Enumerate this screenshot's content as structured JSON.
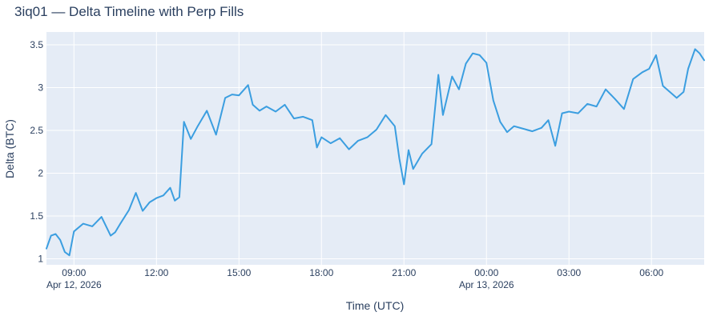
{
  "chart_data": {
    "type": "line",
    "title": "3iq01 — Delta Timeline with Perp Fills",
    "xlabel": "Time (UTC)",
    "ylabel": "Delta (BTC)",
    "x_tick_labels": [
      {
        "label": "09:00",
        "sublabel": "Apr 12, 2026",
        "value": "2026-04-12 09:00"
      },
      {
        "label": "12:00",
        "sublabel": "",
        "value": "2026-04-12 12:00"
      },
      {
        "label": "15:00",
        "sublabel": "",
        "value": "2026-04-12 15:00"
      },
      {
        "label": "18:00",
        "sublabel": "",
        "value": "2026-04-12 18:00"
      },
      {
        "label": "21:00",
        "sublabel": "",
        "value": "2026-04-12 21:00"
      },
      {
        "label": "00:00",
        "sublabel": "Apr 13, 2026",
        "value": "2026-04-13 00:00"
      },
      {
        "label": "03:00",
        "sublabel": "",
        "value": "2026-04-13 03:00"
      },
      {
        "label": "06:00",
        "sublabel": "",
        "value": "2026-04-13 06:00"
      }
    ],
    "y_ticks": [
      1,
      1.5,
      2,
      2.5,
      3,
      3.5
    ],
    "y_tick_labels": [
      "1",
      "1.5",
      "2",
      "2.5",
      "3",
      "3.5"
    ],
    "xlim": [
      "2026-04-12 08:00",
      "2026-04-13 07:55"
    ],
    "ylim": [
      0.93,
      3.65
    ],
    "grid": true,
    "line_color": "#3b9ee0",
    "plot_bg": "#e5ecf6",
    "series": [
      {
        "x": [
          "2026-04-12 08:00",
          "2026-04-12 08:10",
          "2026-04-12 08:20",
          "2026-04-12 08:30",
          "2026-04-12 08:40",
          "2026-04-12 08:50",
          "2026-04-12 09:00",
          "2026-04-12 09:20",
          "2026-04-12 09:40",
          "2026-04-12 10:00",
          "2026-04-12 10:20",
          "2026-04-12 10:30",
          "2026-04-12 10:40",
          "2026-04-12 11:00",
          "2026-04-12 11:15",
          "2026-04-12 11:30",
          "2026-04-12 11:45",
          "2026-04-12 12:00",
          "2026-04-12 12:15",
          "2026-04-12 12:30",
          "2026-04-12 12:40",
          "2026-04-12 12:50",
          "2026-04-12 13:00",
          "2026-04-12 13:15",
          "2026-04-12 13:30",
          "2026-04-12 13:50",
          "2026-04-12 14:10",
          "2026-04-12 14:30",
          "2026-04-12 14:45",
          "2026-04-12 15:00",
          "2026-04-12 15:20",
          "2026-04-12 15:30",
          "2026-04-12 15:45",
          "2026-04-12 16:00",
          "2026-04-12 16:20",
          "2026-04-12 16:40",
          "2026-04-12 17:00",
          "2026-04-12 17:20",
          "2026-04-12 17:40",
          "2026-04-12 17:50",
          "2026-04-12 18:00",
          "2026-04-12 18:20",
          "2026-04-12 18:40",
          "2026-04-12 19:00",
          "2026-04-12 19:20",
          "2026-04-12 19:40",
          "2026-04-12 20:00",
          "2026-04-12 20:20",
          "2026-04-12 20:40",
          "2026-04-12 20:50",
          "2026-04-12 21:00",
          "2026-04-12 21:10",
          "2026-04-12 21:20",
          "2026-04-12 21:40",
          "2026-04-12 22:00",
          "2026-04-12 22:15",
          "2026-04-12 22:25",
          "2026-04-12 22:45",
          "2026-04-12 23:00",
          "2026-04-12 23:15",
          "2026-04-12 23:30",
          "2026-04-12 23:45",
          "2026-04-13 00:00",
          "2026-04-13 00:15",
          "2026-04-13 00:30",
          "2026-04-13 00:45",
          "2026-04-13 01:00",
          "2026-04-13 01:20",
          "2026-04-13 01:40",
          "2026-04-13 02:00",
          "2026-04-13 02:15",
          "2026-04-13 02:30",
          "2026-04-13 02:45",
          "2026-04-13 03:00",
          "2026-04-13 03:20",
          "2026-04-13 03:40",
          "2026-04-13 04:00",
          "2026-04-13 04:20",
          "2026-04-13 04:40",
          "2026-04-13 05:00",
          "2026-04-13 05:20",
          "2026-04-13 05:40",
          "2026-04-13 05:55",
          "2026-04-13 06:10",
          "2026-04-13 06:25",
          "2026-04-13 06:40",
          "2026-04-13 06:55",
          "2026-04-13 07:10",
          "2026-04-13 07:20",
          "2026-04-13 07:35",
          "2026-04-13 07:45",
          "2026-04-13 07:55"
        ],
        "y": [
          1.12,
          1.27,
          1.29,
          1.22,
          1.08,
          1.04,
          1.32,
          1.41,
          1.38,
          1.49,
          1.27,
          1.31,
          1.4,
          1.57,
          1.77,
          1.56,
          1.66,
          1.71,
          1.74,
          1.83,
          1.68,
          1.72,
          2.6,
          2.4,
          2.55,
          2.73,
          2.45,
          2.88,
          2.92,
          2.91,
          3.03,
          2.8,
          2.73,
          2.78,
          2.72,
          2.8,
          2.64,
          2.66,
          2.62,
          2.3,
          2.42,
          2.35,
          2.41,
          2.28,
          2.38,
          2.42,
          2.51,
          2.68,
          2.55,
          2.17,
          1.87,
          2.27,
          2.05,
          2.23,
          2.34,
          3.15,
          2.68,
          3.13,
          2.98,
          3.28,
          3.4,
          3.38,
          3.29,
          2.85,
          2.6,
          2.48,
          2.55,
          2.52,
          2.49,
          2.53,
          2.62,
          2.32,
          2.7,
          2.72,
          2.7,
          2.81,
          2.78,
          2.98,
          2.87,
          2.75,
          3.1,
          3.18,
          3.22,
          3.38,
          3.02,
          2.95,
          2.88,
          2.95,
          3.22,
          3.45,
          3.4,
          3.32
        ]
      }
    ]
  }
}
